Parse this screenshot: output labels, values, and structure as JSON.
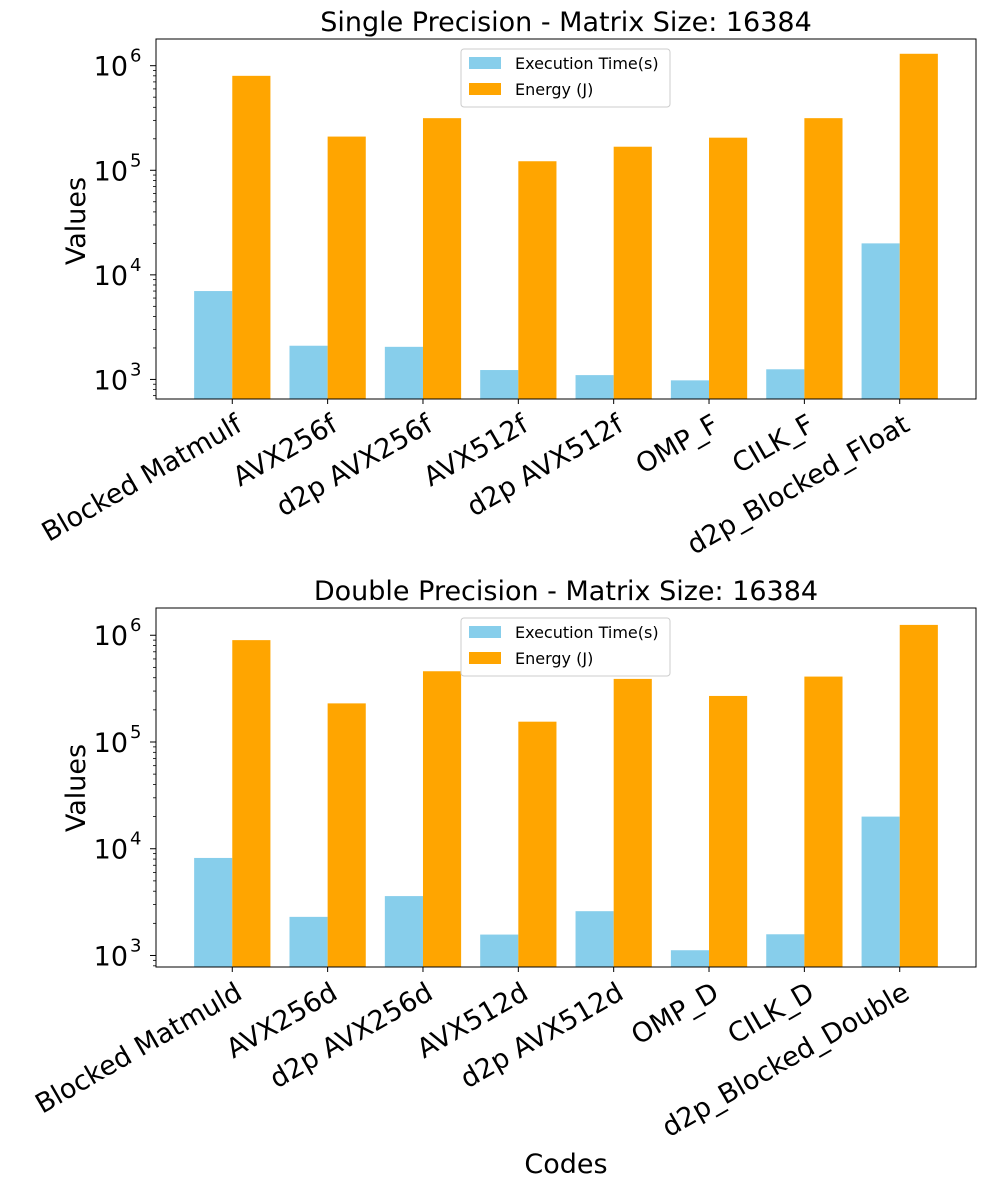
{
  "chart_data": [
    {
      "type": "bar",
      "title": "Single Precision - Matrix Size: 16384",
      "xlabel": "",
      "ylabel": "Values",
      "yscale": "log",
      "ylim": [
        650,
        1800000
      ],
      "yticks": [
        {
          "value": 1000,
          "base": "10",
          "exp": "3"
        },
        {
          "value": 10000,
          "base": "10",
          "exp": "4"
        },
        {
          "value": 100000,
          "base": "10",
          "exp": "5"
        },
        {
          "value": 1000000,
          "base": "10",
          "exp": "6"
        }
      ],
      "categories": [
        "Blocked Matmulf",
        "AVX256f",
        "d2p AVX256f",
        "AVX512f",
        "d2p AVX512f",
        "OMP_F",
        "CILK_F",
        "d2p_Blocked_Float"
      ],
      "series": [
        {
          "name": "Execution Time(s)",
          "color": "#87CEEB",
          "values": [
            7000,
            2100,
            2050,
            1230,
            1100,
            980,
            1250,
            20000
          ]
        },
        {
          "name": "Energy (J)",
          "color": "#FFA500",
          "values": [
            800000,
            210000,
            315000,
            122000,
            168000,
            205000,
            315000,
            1300000
          ]
        }
      ],
      "legend": "top-center",
      "grid": false
    },
    {
      "type": "bar",
      "title": "Double Precision - Matrix Size: 16384",
      "xlabel": "Codes",
      "ylabel": "Values",
      "yscale": "log",
      "ylim": [
        780,
        1800000
      ],
      "yticks": [
        {
          "value": 1000,
          "base": "10",
          "exp": "3"
        },
        {
          "value": 10000,
          "base": "10",
          "exp": "4"
        },
        {
          "value": 100000,
          "base": "10",
          "exp": "5"
        },
        {
          "value": 1000000,
          "base": "10",
          "exp": "6"
        }
      ],
      "categories": [
        "Blocked Matmuld",
        "AVX256d",
        "d2p AVX256d",
        "AVX512d",
        "d2p AVX512d",
        "OMP_D",
        "CILK_D",
        "d2p_Blocked_Double"
      ],
      "series": [
        {
          "name": "Execution Time(s)",
          "color": "#87CEEB",
          "values": [
            8200,
            2300,
            3600,
            1570,
            2600,
            1120,
            1580,
            20000
          ]
        },
        {
          "name": "Energy (J)",
          "color": "#FFA500",
          "values": [
            900000,
            230000,
            460000,
            155000,
            390000,
            270000,
            410000,
            1250000
          ]
        }
      ],
      "legend": "top-center",
      "grid": false
    }
  ]
}
